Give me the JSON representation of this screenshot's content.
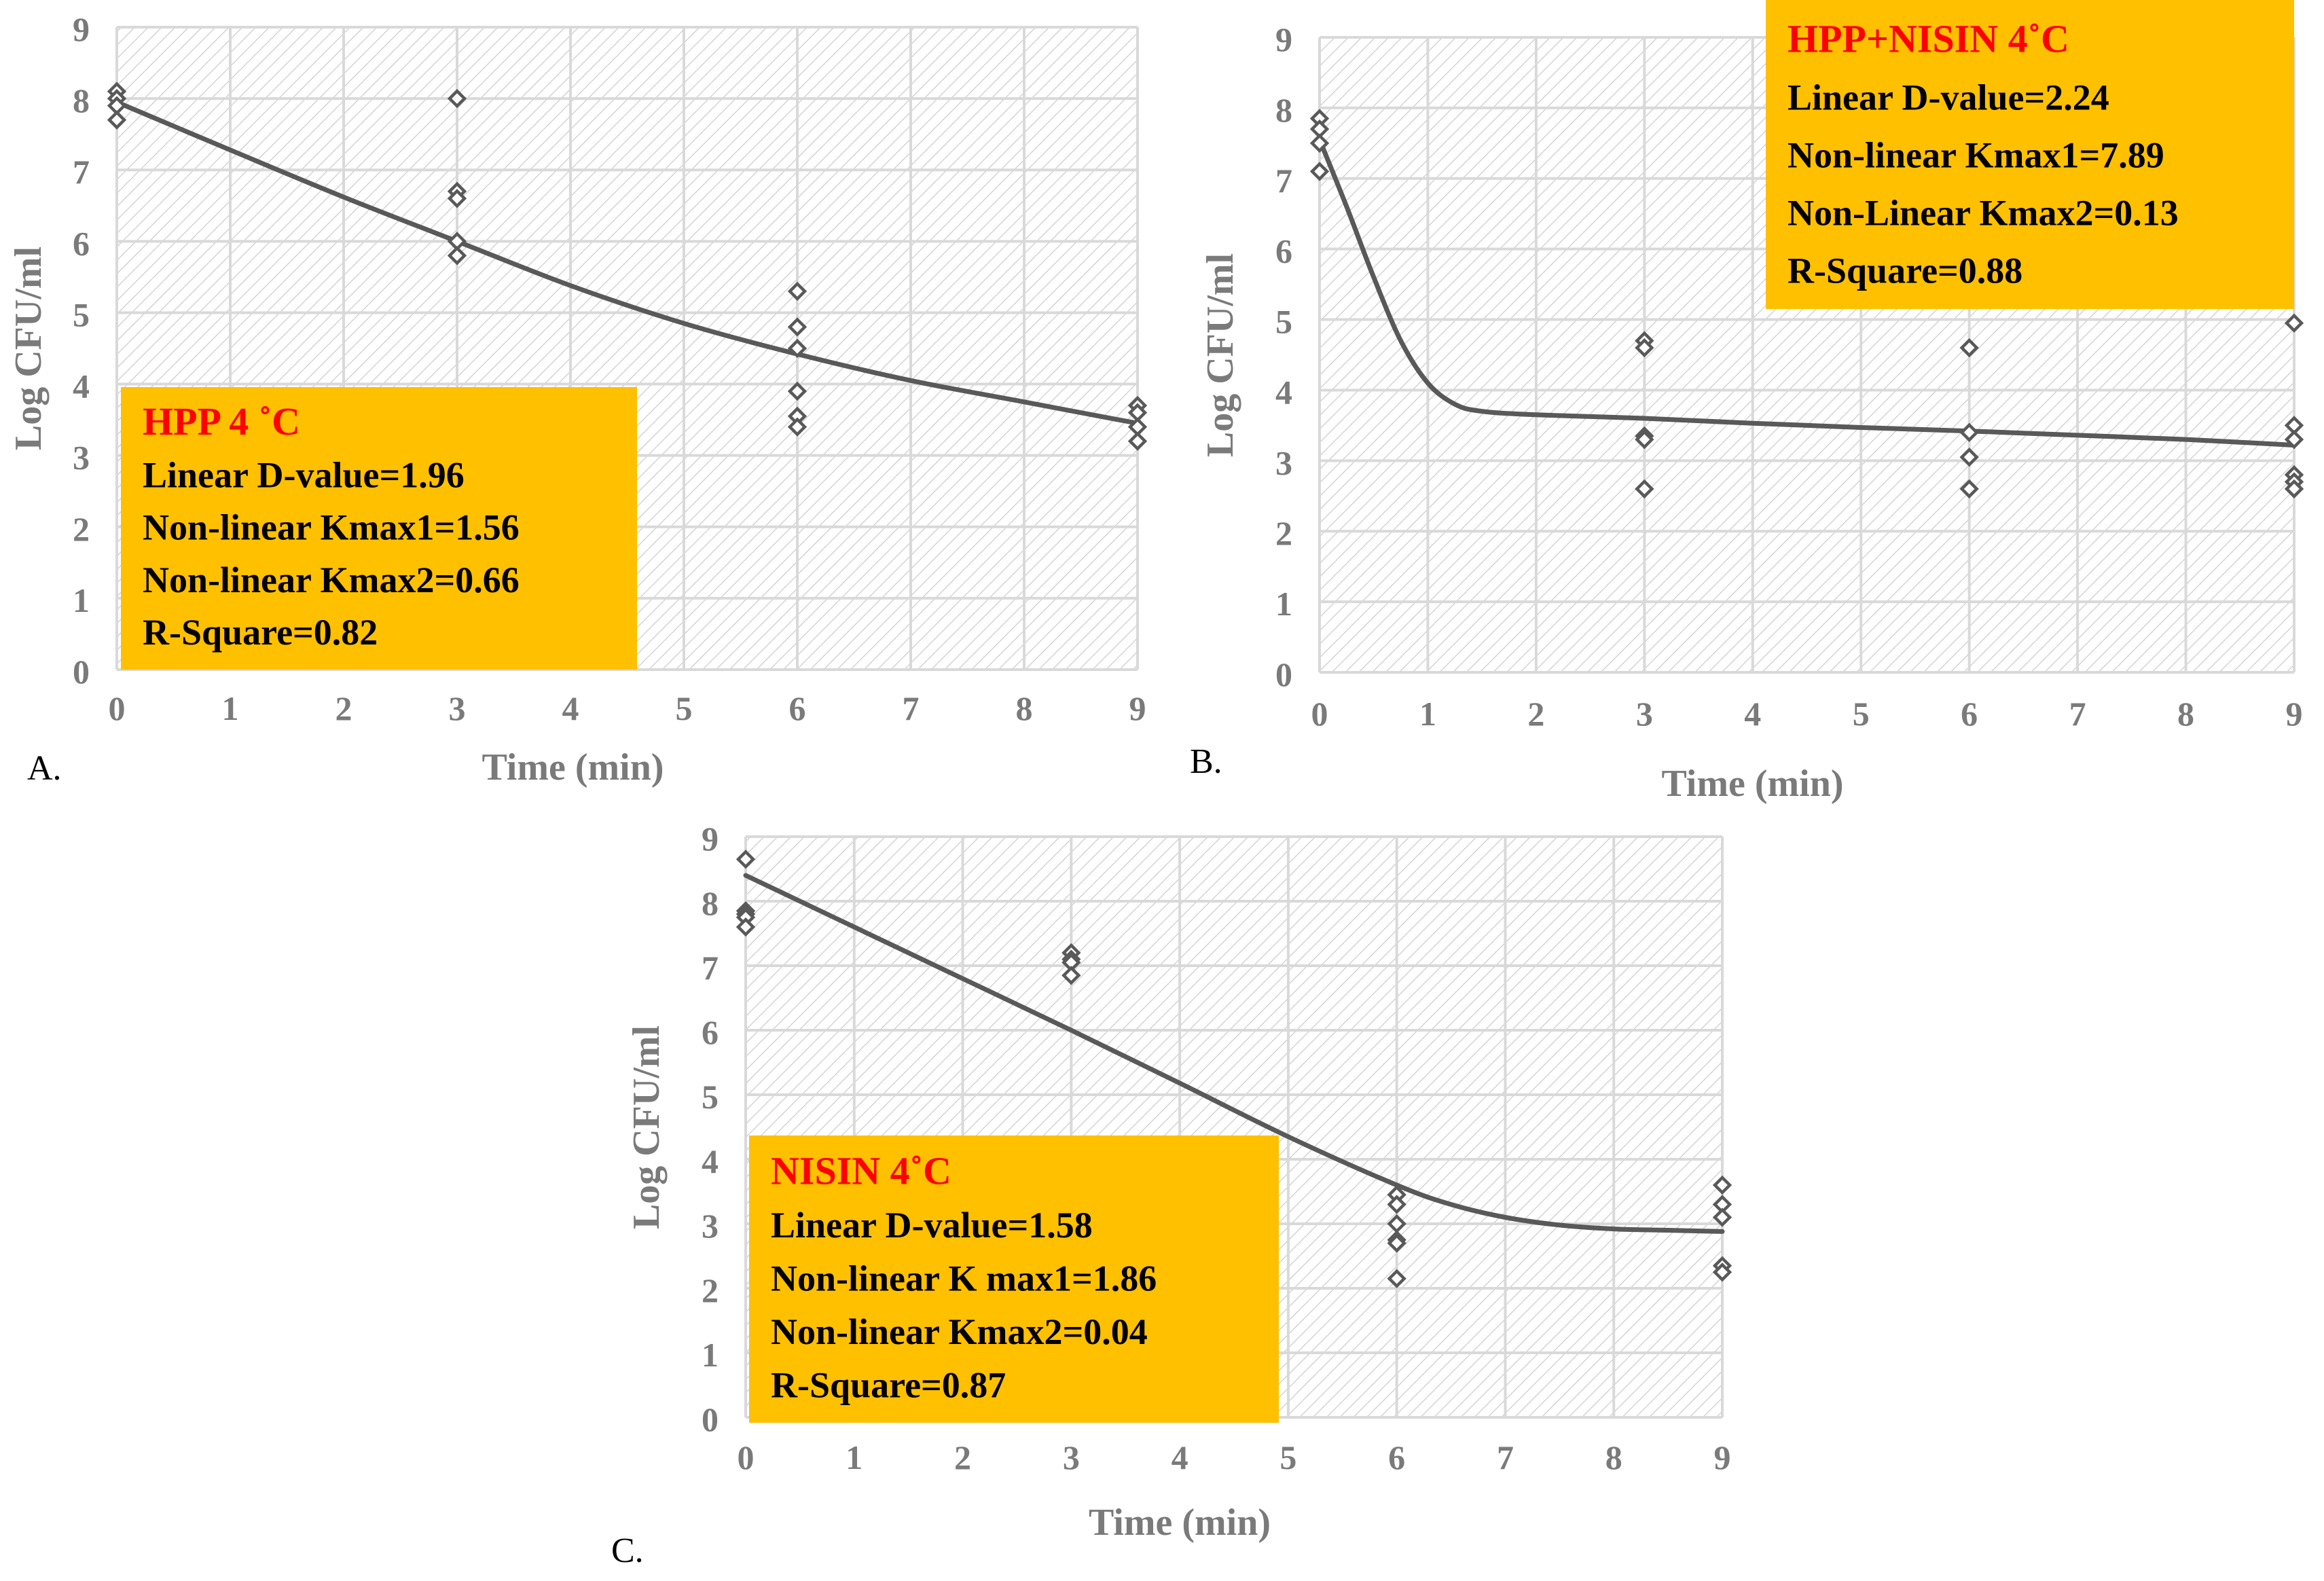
{
  "colors": {
    "series": "#595959",
    "grid": "#d9d9d9",
    "hatch": "#d4d4d4",
    "box_fill": "#ffc000",
    "box_title": "#ff0000",
    "box_text": "#000000",
    "axis_text": "#7a7a7a"
  },
  "chart_data": [
    {
      "type": "scatter",
      "panel_label": "A.",
      "xlabel": "Time (min)",
      "ylabel": "Log CFU/ml",
      "xlim": [
        0,
        9
      ],
      "ylim": [
        0,
        9
      ],
      "x_ticks": [
        "0",
        "1",
        "2",
        "3",
        "4",
        "5",
        "6",
        "7",
        "8",
        "9"
      ],
      "y_ticks": [
        "0",
        "1",
        "2",
        "3",
        "4",
        "5",
        "6",
        "7",
        "8",
        "9"
      ],
      "grid": true,
      "points": [
        [
          0,
          8.1
        ],
        [
          0,
          8.0
        ],
        [
          0,
          7.9
        ],
        [
          0,
          7.7
        ],
        [
          3,
          8.0
        ],
        [
          3,
          6.7
        ],
        [
          3,
          6.6
        ],
        [
          3,
          6.0
        ],
        [
          3,
          5.8
        ],
        [
          6,
          5.3
        ],
        [
          6,
          4.8
        ],
        [
          6,
          4.5
        ],
        [
          6,
          3.9
        ],
        [
          6,
          3.55
        ],
        [
          6,
          3.4
        ],
        [
          9,
          3.7
        ],
        [
          9,
          3.6
        ],
        [
          9,
          3.4
        ],
        [
          9,
          3.2
        ]
      ],
      "fit_curve": [
        [
          0,
          7.95
        ],
        [
          1,
          7.28
        ],
        [
          2,
          6.62
        ],
        [
          3,
          6.0
        ],
        [
          4,
          5.38
        ],
        [
          5,
          4.85
        ],
        [
          6,
          4.42
        ],
        [
          7,
          4.05
        ],
        [
          8,
          3.75
        ],
        [
          9,
          3.45
        ]
      ],
      "annotation": {
        "title": "HPP 4 ˚C",
        "lines": [
          "Linear D-value=1.96",
          "Non-linear Kmax1=1.56",
          "Non-linear Kmax2=0.66",
          "R-Square=0.82"
        ],
        "placement": "bottom-left"
      }
    },
    {
      "type": "scatter",
      "panel_label": "B.",
      "xlabel": "Time (min)",
      "ylabel": "Log CFU/ml",
      "xlim": [
        0,
        9
      ],
      "ylim": [
        0,
        9
      ],
      "x_ticks": [
        "0",
        "1",
        "2",
        "3",
        "4",
        "5",
        "6",
        "7",
        "8",
        "9"
      ],
      "y_ticks": [
        "0",
        "1",
        "2",
        "3",
        "4",
        "5",
        "6",
        "7",
        "8",
        "9"
      ],
      "grid": true,
      "points": [
        [
          0,
          7.85
        ],
        [
          0,
          7.7
        ],
        [
          0,
          7.5
        ],
        [
          0,
          7.1
        ],
        [
          3,
          4.7
        ],
        [
          3,
          4.6
        ],
        [
          3,
          3.35
        ],
        [
          3,
          3.3
        ],
        [
          3,
          2.6
        ],
        [
          6,
          4.6
        ],
        [
          6,
          3.4
        ],
        [
          6,
          3.05
        ],
        [
          6,
          2.6
        ],
        [
          9,
          4.95
        ],
        [
          9,
          3.5
        ],
        [
          9,
          3.3
        ],
        [
          9,
          2.8
        ],
        [
          9,
          2.7
        ],
        [
          9,
          2.6
        ]
      ],
      "fit_curve": [
        [
          0,
          7.55
        ],
        [
          0.25,
          6.6
        ],
        [
          0.5,
          5.6
        ],
        [
          0.75,
          4.7
        ],
        [
          1.0,
          4.1
        ],
        [
          1.25,
          3.8
        ],
        [
          1.5,
          3.7
        ],
        [
          2,
          3.65
        ],
        [
          3,
          3.6
        ],
        [
          4,
          3.53
        ],
        [
          5,
          3.47
        ],
        [
          6,
          3.42
        ],
        [
          7,
          3.36
        ],
        [
          8,
          3.3
        ],
        [
          9,
          3.22
        ]
      ],
      "annotation": {
        "title": "HPP+NISIN 4˚C",
        "lines": [
          "Linear D-value=2.24",
          "Non-linear Kmax1=7.89",
          "Non-Linear Kmax2=0.13",
          "R-Square=0.88"
        ],
        "placement": "top-right"
      }
    },
    {
      "type": "scatter",
      "panel_label": "C.",
      "xlabel": "Time (min)",
      "ylabel": "Log CFU/ml",
      "xlim": [
        0,
        9
      ],
      "ylim": [
        0,
        9
      ],
      "x_ticks": [
        "0",
        "1",
        "2",
        "3",
        "4",
        "5",
        "6",
        "7",
        "8",
        "9"
      ],
      "y_ticks": [
        "0",
        "1",
        "2",
        "3",
        "4",
        "5",
        "6",
        "7",
        "8",
        "9"
      ],
      "grid": true,
      "points": [
        [
          0,
          8.65
        ],
        [
          0,
          7.85
        ],
        [
          0,
          7.8
        ],
        [
          0,
          7.75
        ],
        [
          0,
          7.6
        ],
        [
          3,
          7.2
        ],
        [
          3,
          7.1
        ],
        [
          3,
          7.05
        ],
        [
          3,
          6.85
        ],
        [
          6,
          3.45
        ],
        [
          6,
          3.3
        ],
        [
          6,
          3.0
        ],
        [
          6,
          2.75
        ],
        [
          6,
          2.7
        ],
        [
          6,
          2.15
        ],
        [
          9,
          3.6
        ],
        [
          9,
          3.3
        ],
        [
          9,
          3.1
        ],
        [
          9,
          2.35
        ],
        [
          9,
          2.25
        ]
      ],
      "fit_curve": [
        [
          0,
          8.4
        ],
        [
          1,
          7.6
        ],
        [
          2,
          6.8
        ],
        [
          3,
          6.0
        ],
        [
          4,
          5.18
        ],
        [
          5,
          4.35
        ],
        [
          6,
          3.6
        ],
        [
          6.5,
          3.3
        ],
        [
          7,
          3.1
        ],
        [
          7.5,
          2.98
        ],
        [
          8,
          2.92
        ],
        [
          8.5,
          2.9
        ],
        [
          9,
          2.88
        ]
      ],
      "annotation": {
        "title": "NISIN 4˚C",
        "lines": [
          "Linear D-value=1.58",
          "Non-linear K max1=1.86",
          "Non-linear Kmax2=0.04",
          "R-Square=0.87"
        ],
        "placement": "bottom-left"
      }
    }
  ]
}
